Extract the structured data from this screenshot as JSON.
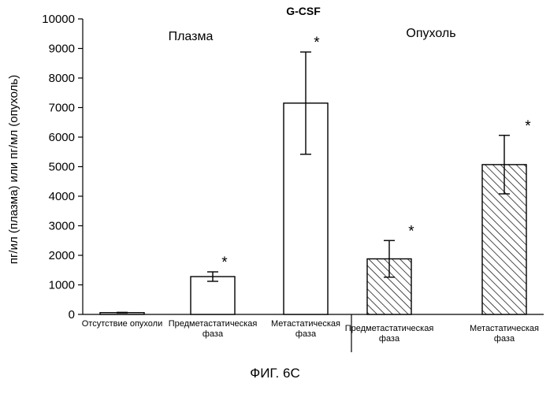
{
  "chart_data": {
    "type": "bar",
    "title": "G-CSF",
    "ylabel": "пг/ил (плазма) или пг/мл (опухоль)",
    "ylim": [
      0,
      10000
    ],
    "yticks": [
      0,
      1000,
      2000,
      3000,
      4000,
      5000,
      6000,
      7000,
      8000,
      9000,
      10000
    ],
    "groups": [
      {
        "label": "Плазма",
        "pattern": "open"
      },
      {
        "label": "Опухоль",
        "pattern": "hatched"
      }
    ],
    "categories": [
      [
        "Отсутствие опухоли"
      ],
      [
        "Предметастатическая",
        "фаза"
      ],
      [
        "Метастатическая",
        "фаза"
      ],
      [
        "Предметастатическая",
        "фаза"
      ],
      [
        "Метастатическая",
        "фаза"
      ]
    ],
    "values": [
      60,
      1280,
      7150,
      1880,
      5070
    ],
    "errors": [
      10,
      160,
      1730,
      620,
      990
    ],
    "significance": [
      "",
      "*",
      "*",
      "*",
      "*"
    ],
    "group_index": [
      0,
      0,
      0,
      1,
      1
    ]
  },
  "caption": "ФИГ. 6C"
}
